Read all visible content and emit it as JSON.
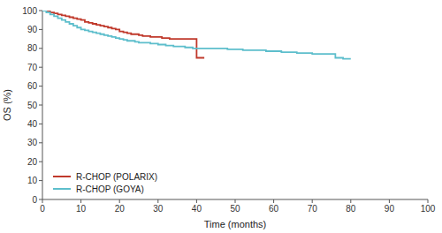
{
  "chart_data": {
    "type": "line",
    "line_style": "step",
    "xlabel": "Time (months)",
    "ylabel": "OS (%)",
    "xlim": [
      0,
      100
    ],
    "ylim": [
      0,
      100
    ],
    "xticks": [
      0,
      10,
      20,
      30,
      40,
      50,
      60,
      70,
      80,
      90,
      100
    ],
    "yticks": [
      0,
      10,
      20,
      30,
      40,
      50,
      60,
      70,
      80,
      90,
      100
    ],
    "grid": false,
    "legend": "lower left",
    "series": [
      {
        "name": "R-CHOP (POLARIX)",
        "color": "#c0392b",
        "x": [
          0,
          1,
          2,
          3,
          4,
          5,
          6,
          7,
          8,
          9,
          10,
          11,
          12,
          13,
          14,
          15,
          16,
          17,
          18,
          19,
          20,
          21,
          22,
          23,
          24,
          25,
          26,
          27,
          28,
          29,
          30,
          31,
          32,
          33,
          34,
          35,
          36,
          37,
          38,
          39,
          40,
          41,
          42
        ],
        "values": [
          100,
          100,
          99,
          98.5,
          98,
          97.5,
          97,
          96.5,
          96,
          95.5,
          95,
          94,
          93.5,
          93,
          92.5,
          92,
          91.5,
          91,
          90.5,
          90,
          89,
          88.5,
          88,
          87.5,
          87.5,
          87,
          86.5,
          86.5,
          86,
          86,
          86,
          85.5,
          85.5,
          85,
          85,
          85,
          85,
          85,
          85,
          85,
          75,
          75,
          75
        ]
      },
      {
        "name": "R-CHOP (GOYA)",
        "color": "#5dbecc",
        "x": [
          0,
          1,
          2,
          3,
          4,
          5,
          6,
          7,
          8,
          9,
          10,
          11,
          12,
          13,
          14,
          15,
          16,
          17,
          18,
          19,
          20,
          21,
          22,
          23,
          24,
          25,
          26,
          27,
          28,
          29,
          30,
          31,
          32,
          33,
          34,
          35,
          36,
          37,
          38,
          39,
          40,
          42,
          44,
          46,
          48,
          50,
          52,
          54,
          56,
          58,
          60,
          62,
          64,
          66,
          68,
          70,
          72,
          74,
          76,
          78,
          80
        ],
        "values": [
          100,
          99,
          98,
          97,
          96,
          95,
          94,
          93,
          92,
          91,
          90,
          89.5,
          89,
          88.5,
          88,
          87.5,
          87,
          86.5,
          86,
          85.5,
          85,
          84.5,
          84,
          84,
          83.5,
          83,
          83,
          83,
          82.5,
          82.5,
          82,
          82,
          81.5,
          81.5,
          81,
          81,
          81,
          80.5,
          80.5,
          80,
          80,
          80,
          80,
          80,
          79.5,
          79.5,
          79,
          79,
          79,
          78.5,
          78.5,
          78,
          78,
          77.5,
          77.5,
          77,
          77,
          77,
          75,
          74.5,
          74.5
        ]
      }
    ]
  }
}
